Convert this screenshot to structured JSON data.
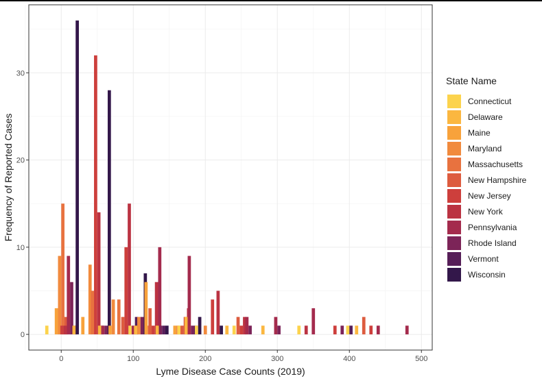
{
  "chart_data": {
    "type": "bar",
    "xlabel": "Lyme Disease Case Counts (2019)",
    "ylabel": "Frequency of Reported Cases",
    "xlim": [
      -45,
      515
    ],
    "ylim": [
      -1.8,
      37.8
    ],
    "xticks": [
      0,
      100,
      200,
      300,
      400,
      500
    ],
    "yticks": [
      0,
      10,
      20,
      30
    ],
    "xtick_labels": [
      "0",
      "100",
      "200",
      "300",
      "400",
      "500"
    ],
    "ytick_labels": [
      "0",
      "10",
      "20",
      "30"
    ],
    "grid": true,
    "legend": {
      "title": "State Name",
      "position": "right"
    },
    "bin_width": 10,
    "bar_width": 4.5,
    "series": [
      {
        "name": "Connecticut",
        "color": "#fcd34d",
        "values": [
          [
            -20,
            1
          ],
          [
            100,
            1
          ],
          [
            170,
            1
          ],
          [
            190,
            1
          ],
          [
            240,
            1
          ],
          [
            330,
            1
          ],
          [
            400,
            1
          ]
        ]
      },
      {
        "name": "Delaware",
        "color": "#fbb740",
        "values": [
          [
            20,
            1
          ],
          [
            60,
            1
          ],
          [
            110,
            1
          ],
          [
            140,
            1
          ],
          [
            180,
            2
          ],
          [
            230,
            1
          ],
          [
            280,
            1
          ],
          [
            410,
            1
          ]
        ]
      },
      {
        "name": "Maine",
        "color": "#f8a23b",
        "values": [
          [
            0,
            3
          ],
          [
            30,
            2
          ],
          [
            70,
            1
          ],
          [
            120,
            6
          ],
          [
            160,
            1
          ]
        ]
      },
      {
        "name": "Maryland",
        "color": "#f18a3d",
        "values": [
          [
            0,
            9
          ],
          [
            40,
            8
          ],
          [
            70,
            4
          ],
          [
            110,
            2
          ],
          [
            200,
            1
          ]
        ]
      },
      {
        "name": "Massachusetts",
        "color": "#e8723f",
        "values": [
          [
            0,
            15
          ],
          [
            50,
            5
          ],
          [
            80,
            4
          ],
          [
            120,
            1
          ],
          [
            160,
            1
          ]
        ]
      },
      {
        "name": "New Hampshire",
        "color": "#dd5c3f",
        "values": [
          [
            0,
            2
          ],
          [
            90,
            2
          ],
          [
            130,
            3
          ],
          [
            170,
            1
          ],
          [
            250,
            2
          ],
          [
            420,
            2
          ]
        ]
      },
      {
        "name": "New Jersey",
        "color": "#cd3f3c",
        "values": [
          [
            10,
            1
          ],
          [
            50,
            32
          ],
          [
            90,
            10
          ],
          [
            130,
            1
          ],
          [
            170,
            2
          ],
          [
            210,
            4
          ],
          [
            250,
            1
          ],
          [
            380,
            1
          ],
          [
            430,
            1
          ]
        ]
      },
      {
        "name": "New York",
        "color": "#bb3342",
        "values": [
          [
            10,
            1
          ],
          [
            50,
            14
          ],
          [
            90,
            15
          ],
          [
            130,
            6
          ],
          [
            170,
            3
          ],
          [
            220,
            5
          ],
          [
            250,
            2
          ],
          [
            340,
            1
          ]
        ]
      },
      {
        "name": "Pennsylvania",
        "color": "#a42b4d",
        "values": [
          [
            10,
            9
          ],
          [
            60,
            1
          ],
          [
            100,
            1
          ],
          [
            130,
            10
          ],
          [
            180,
            9
          ],
          [
            260,
            2
          ],
          [
            300,
            2
          ],
          [
            350,
            3
          ],
          [
            440,
            1
          ],
          [
            480,
            1
          ]
        ]
      },
      {
        "name": "Rhode Island",
        "color": "#7c2458",
        "values": [
          [
            10,
            6
          ],
          [
            60,
            1
          ],
          [
            110,
            2
          ],
          [
            140,
            1
          ],
          [
            180,
            1
          ],
          [
            260,
            1
          ],
          [
            300,
            1
          ],
          [
            390,
            1
          ]
        ]
      },
      {
        "name": "Vermont",
        "color": "#561e58",
        "values": [
          [
            10,
            1
          ],
          [
            50,
            1
          ],
          [
            100,
            2
          ],
          [
            140,
            1
          ],
          [
            180,
            1
          ],
          [
            400,
            1
          ]
        ]
      },
      {
        "name": "Wisconsin",
        "color": "#33174a",
        "values": [
          [
            20,
            36
          ],
          [
            60,
            28
          ],
          [
            110,
            7
          ],
          [
            140,
            1
          ],
          [
            190,
            2
          ],
          [
            220,
            1
          ]
        ]
      }
    ]
  }
}
